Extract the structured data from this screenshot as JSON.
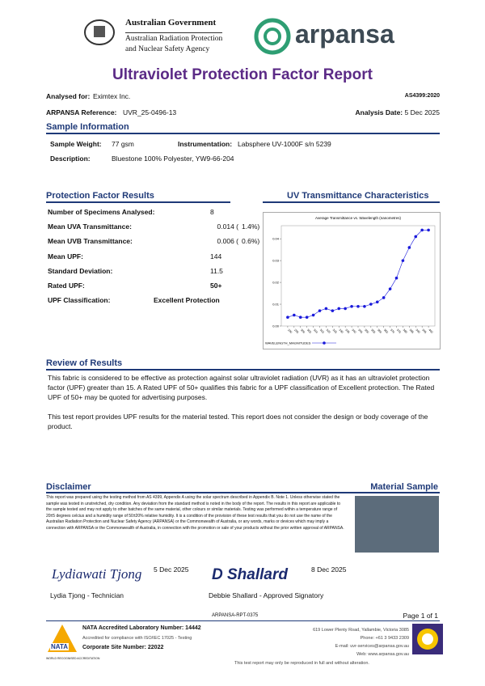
{
  "header": {
    "gov_line1": "Australian Government",
    "gov_line2": "Australian Radiation Protection",
    "gov_line3": "and Nuclear Safety Agency",
    "brand": "arpansa"
  },
  "title": "Ultraviolet Protection Factor Report",
  "meta": {
    "analysed_for_label": "Analysed for:",
    "analysed_for": "Eximtex Inc.",
    "standard": "AS4399:2020",
    "reference_label": "ARPANSA Reference:",
    "reference": "UVR_25-0496-13",
    "date_label": "Analysis Date:",
    "date": "5 Dec 2025"
  },
  "sample": {
    "heading": "Sample Information",
    "weight_label": "Sample Weight:",
    "weight": "77 gsm",
    "instrument_label": "Instrumentation:",
    "instrument": "Labsphere UV-1000F s/n 5239",
    "description_label": "Description:",
    "description": "Bluestone 100% Polyester, YW9-66-204"
  },
  "results": {
    "heading": "Protection Factor Results",
    "rows": [
      [
        "Number of Specimens Analysed:",
        "8",
        ""
      ],
      [
        "Mean UVA Transmittance:",
        "0.014 (",
        "1.4%)"
      ],
      [
        "Mean UVB Transmittance:",
        "0.006 (",
        "0.6%)"
      ],
      [
        "Mean UPF:",
        "144",
        ""
      ],
      [
        "Standard Deviation:",
        "11.5",
        ""
      ],
      [
        "Rated UPF:",
        "50+",
        ""
      ],
      [
        "UPF Classification:",
        "Excellent Protection",
        ""
      ]
    ]
  },
  "uv_chart": {
    "heading": "UV Transmittance Characteristics",
    "chart_data": {
      "type": "line",
      "title": "Average Transmittance vs. Wavelength (nanometres)",
      "x": [
        290,
        295,
        300,
        305,
        310,
        315,
        320,
        325,
        330,
        335,
        340,
        345,
        350,
        355,
        360,
        365,
        370,
        375,
        380,
        385,
        390,
        395,
        400
      ],
      "series": [
        {
          "name": "WAVELENGTH_MAGNITUDES",
          "color": "#1a1adb",
          "values": [
            0.004,
            0.005,
            0.004,
            0.004,
            0.005,
            0.007,
            0.008,
            0.007,
            0.008,
            0.008,
            0.009,
            0.009,
            0.009,
            0.01,
            0.011,
            0.013,
            0.017,
            0.022,
            0.03,
            0.036,
            0.041,
            0.044,
            0.044
          ]
        }
      ],
      "xlim": [
        285,
        405
      ],
      "xticks": [
        290,
        295,
        300,
        305,
        310,
        315,
        320,
        325,
        330,
        335,
        340,
        345,
        350,
        355,
        360,
        365,
        370,
        375,
        380,
        385,
        390,
        395,
        400
      ],
      "ylim": [
        0,
        0.046
      ],
      "yticks": [
        {
          "value": 0,
          "label": "0.00"
        },
        0.01,
        0.02,
        0.03,
        0.04
      ]
    }
  },
  "review": {
    "heading": "Review of Results",
    "paragraph1": "This fabric is considered to be effective as protection against solar ultraviolet radiation (UVR) as it has an ultraviolet protection factor (UPF) greater than 15. A Rated UPF of 50+ qualifies this fabric for a UPF classification of Excellent protection. The Rated UPF of 50+ may be quoted for advertising purposes.",
    "paragraph2": "This test report provides UPF results for the material tested. This report does not consider the design or body coverage of the product."
  },
  "disclaimer": {
    "heading": "Disclaimer",
    "text": "This report was prepared using the testing method from AS 4399, Appendix A using the solar spectrum described in Appendix B. Note 1. Unless otherwise stated the sample was tested in unstretched, dry condition. Any deviation from the standard method is noted in the body of the report. The results in this report are applicable to the sample tested and may not apply to other batches of the same material, other colours or similar materials. Testing was performed within a temperature range of 20±5 degrees celcius and a humidity range of 50±20% relative humidity. It is a condition of the provision of these test results that you do not use the name of the Australian Radiation Protection and Nuclear Safety Agency (ARPANSA) or the Commonwealth of Australia, or any words, marks or devices which may imply a connection with ARPANSA or the Commonwealth of Australia, in connection with the promotion or sale of your products without the prior written approval of ARPANSA."
  },
  "material": {
    "heading": "Material Sample"
  },
  "signatures": [
    {
      "signature": "Lydiawati Tjong",
      "date": "5 Dec 2025",
      "name": "Lydia Tjong - Technician"
    },
    {
      "signature": "D Shallard",
      "date": "8 Dec 2025",
      "name": "Debbie Shallard - Approved Signatory"
    }
  ],
  "footer": {
    "report_id": "ARPANSA-RPT-0375",
    "page": "Page 1 of 1",
    "nata_title": "NATA Accredited Laboratory Number: 14442",
    "nata_sub": "Accredited for compliance with ISO/IEC 17025 - Testing",
    "corporate": "Corporate Site Number: 22022",
    "nata_logo": "NATA",
    "nata_caption": "WORLD RECOGNISED ACCREDITATION",
    "address": "619 Lower Plenty Road, Yallambie, Victoria 3085",
    "phone": "Phone: +61 3 9433 2309",
    "email": "E-mail: uvr-services@arpansa.gov.au",
    "web": "Web: www.arpansa.gov.au",
    "note": "This test report may only be reproduced in full and without alteration."
  }
}
